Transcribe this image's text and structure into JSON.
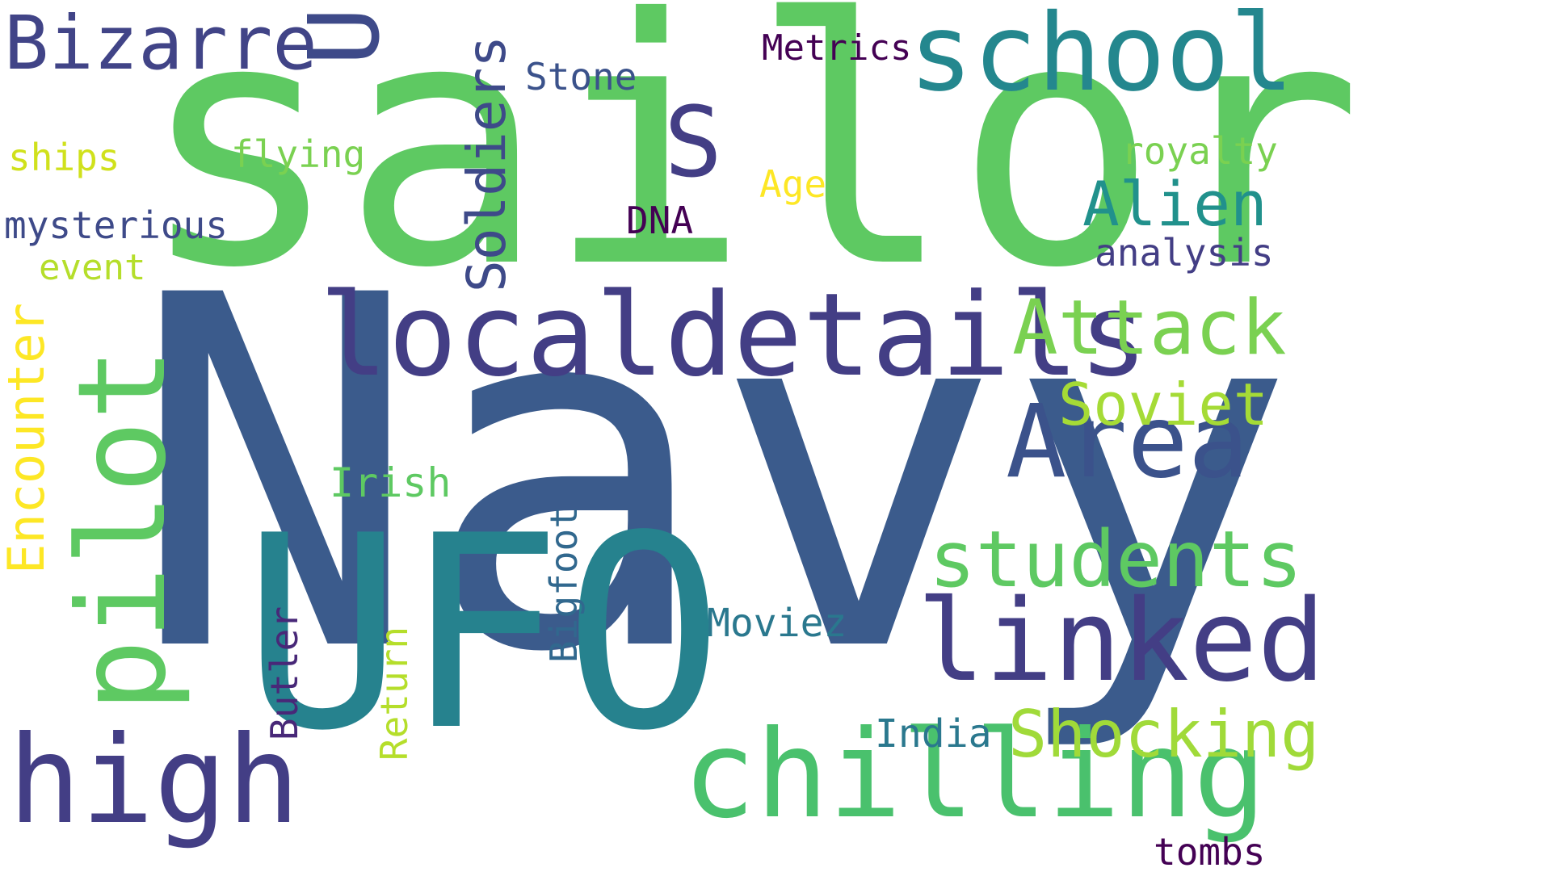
{
  "words": [
    {
      "id": "navy",
      "text": "Navy",
      "color": "#3b5b8c"
    },
    {
      "id": "sailor",
      "text": "sailor",
      "color": "#5ec962"
    },
    {
      "id": "ufo",
      "text": "UFO",
      "color": "#26828e"
    },
    {
      "id": "localdetails",
      "text": "localdetails",
      "color": "#433e85"
    },
    {
      "id": "chilling",
      "text": "chilling",
      "color": "#4ac16d"
    },
    {
      "id": "school",
      "text": "school",
      "color": "#24878e"
    },
    {
      "id": "linked",
      "text": "linked",
      "color": "#433e85"
    },
    {
      "id": "pilot",
      "text": "pilot",
      "color": "#5ec962"
    },
    {
      "id": "high",
      "text": "high",
      "color": "#433e85"
    },
    {
      "id": "area",
      "text": "Area",
      "color": "#3b528b"
    },
    {
      "id": "students",
      "text": "students",
      "color": "#5ec962"
    },
    {
      "id": "attack",
      "text": "Attack",
      "color": "#7ad151"
    },
    {
      "id": "bizarre",
      "text": "Bizarre",
      "color": "#414487"
    },
    {
      "id": "shocking",
      "text": "Shocking",
      "color": "#a0da39"
    },
    {
      "id": "soldiers",
      "text": "Soldiers",
      "color": "#3e4a89"
    },
    {
      "id": "encounter",
      "text": "Encounter",
      "color": "#fde725"
    },
    {
      "id": "s",
      "text": "S",
      "color": "#433e85"
    },
    {
      "id": "u",
      "text": "U",
      "color": "#3e4a89"
    },
    {
      "id": "alien",
      "text": "Alien",
      "color": "#21918c"
    },
    {
      "id": "soviet",
      "text": "Soviet",
      "color": "#a5db36"
    },
    {
      "id": "mysterious",
      "text": "mysterious",
      "color": "#3e4a89"
    },
    {
      "id": "analysis",
      "text": "analysis",
      "color": "#433e85"
    },
    {
      "id": "royalty",
      "text": "royalty",
      "color": "#7ad151"
    },
    {
      "id": "flying",
      "text": "flying",
      "color": "#7ad151"
    },
    {
      "id": "stone",
      "text": "Stone",
      "color": "#3b528b"
    },
    {
      "id": "metrics",
      "text": "Metrics",
      "color": "#440154"
    },
    {
      "id": "ships",
      "text": "ships",
      "color": "#d0e11c"
    },
    {
      "id": "event",
      "text": "event",
      "color": "#b5de2b"
    },
    {
      "id": "age",
      "text": "Age",
      "color": "#fde725"
    },
    {
      "id": "dna",
      "text": "DNA",
      "color": "#440154"
    },
    {
      "id": "irish",
      "text": "Irish",
      "color": "#5ec962"
    },
    {
      "id": "moviez",
      "text": "Moviez",
      "color": "#2a788e"
    },
    {
      "id": "india",
      "text": "India",
      "color": "#2a788e"
    },
    {
      "id": "tombs",
      "text": "tombs",
      "color": "#440154"
    },
    {
      "id": "bigfoot",
      "text": "Bigfoot",
      "color": "#31688e"
    },
    {
      "id": "butler",
      "text": "Butler",
      "color": "#482878"
    },
    {
      "id": "return",
      "text": "Return",
      "color": "#b5de2b"
    }
  ]
}
